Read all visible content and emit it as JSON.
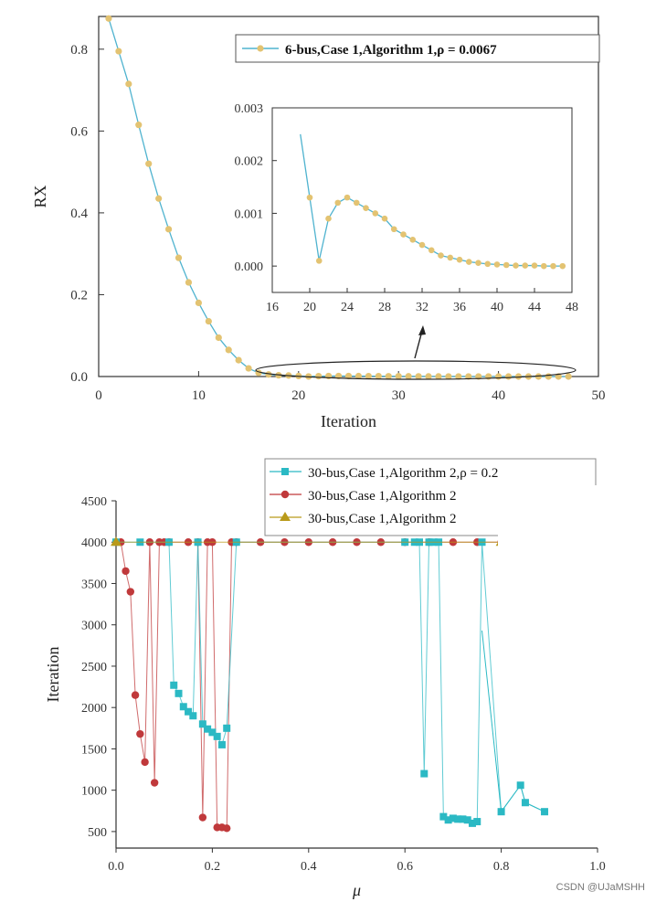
{
  "watermark": "CSDN @UJaMSHH",
  "chart_data": [
    {
      "type": "line",
      "xlabel": "Iteration",
      "ylabel": "RX",
      "xlim": [
        0,
        50
      ],
      "ylim": [
        0,
        0.88
      ],
      "xticks": [
        "0",
        "10",
        "20",
        "30",
        "40",
        "50"
      ],
      "yticks": [
        "0.0",
        "0.2",
        "0.4",
        "0.6",
        "0.8"
      ],
      "legend": "top-right",
      "colors": {
        "line": "#4fb3cf",
        "marker": "#e3c372"
      },
      "series": [
        {
          "name": "6-bus,Case 1,Algorithm 1,ρ = 0.0067",
          "x": [
            1,
            2,
            3,
            4,
            5,
            6,
            7,
            8,
            9,
            10,
            11,
            12,
            13,
            14,
            15,
            16,
            17,
            18,
            19,
            20,
            21,
            22,
            23,
            24,
            25,
            26,
            27,
            28,
            29,
            30,
            31,
            32,
            33,
            34,
            35,
            36,
            37,
            38,
            39,
            40,
            41,
            42,
            43,
            44,
            45,
            46,
            47
          ],
          "y": [
            0.875,
            0.795,
            0.715,
            0.615,
            0.52,
            0.435,
            0.36,
            0.29,
            0.23,
            0.18,
            0.135,
            0.095,
            0.065,
            0.04,
            0.02,
            0.009,
            0.005,
            0.003,
            0.0025,
            0.0013,
            0.0001,
            0.0009,
            0.0012,
            0.0013,
            0.0012,
            0.0011,
            0.001,
            0.0009,
            0.0007,
            0.0006,
            0.0005,
            0.0004,
            0.0003,
            0.0002,
            0.00016,
            0.00012,
            8e-05,
            6e-05,
            4e-05,
            3e-05,
            2e-05,
            1e-05,
            1e-05,
            1e-05,
            0.0,
            0.0,
            0.0
          ]
        }
      ],
      "inset": {
        "xlim": [
          16,
          48
        ],
        "ylim": [
          -0.0005,
          0.003
        ],
        "xticks": [
          "16",
          "20",
          "24",
          "28",
          "32",
          "36",
          "40",
          "44",
          "48"
        ],
        "yticks": [
          "0.000",
          "0.001",
          "0.002",
          "0.003"
        ]
      }
    },
    {
      "type": "line",
      "xlabel": "μ",
      "ylabel": "Iteration",
      "xlim": [
        0,
        1.0
      ],
      "ylim": [
        300,
        4500
      ],
      "xticks": [
        "0.0",
        "0.2",
        "0.4",
        "0.6",
        "0.8",
        "1.0"
      ],
      "yticks": [
        "4500",
        "4000",
        "3500",
        "3000",
        "2500",
        "2000",
        "1500",
        "1000",
        "500"
      ],
      "legend": "top-right",
      "series": [
        {
          "name": "30-bus,Case 1,Algorithm 2,ρ = 0.2",
          "color": "#2bb9c4",
          "marker": "square",
          "x": [
            0.0,
            0.05,
            0.11,
            0.12,
            0.13,
            0.14,
            0.15,
            0.16,
            0.17,
            0.18,
            0.19,
            0.2,
            0.21,
            0.22,
            0.23,
            0.25,
            0.6,
            0.62,
            0.63,
            0.64,
            0.65,
            0.66,
            0.67,
            0.68,
            0.69,
            0.7,
            0.71,
            0.72,
            0.73,
            0.74,
            0.75,
            0.76,
            0.8,
            0.84,
            0.85,
            0.89
          ],
          "y": [
            4000,
            4000,
            4000,
            2270,
            2170,
            2010,
            1950,
            1900,
            4000,
            1800,
            1740,
            1700,
            1650,
            1550,
            1750,
            4000,
            4000,
            4000,
            4000,
            1200,
            4000,
            4000,
            4000,
            680,
            640,
            660,
            650,
            650,
            640,
            600,
            620,
            4000,
            740,
            1060,
            850,
            740
          ]
        },
        {
          "name": "30-bus,Case 1,Algorithm 2",
          "color": "#c0393b",
          "marker": "circle",
          "x": [
            0.0,
            0.01,
            0.02,
            0.03,
            0.04,
            0.05,
            0.06,
            0.07,
            0.08,
            0.09,
            0.1,
            0.11,
            0.15,
            0.17,
            0.18,
            0.19,
            0.2,
            0.21,
            0.22,
            0.23,
            0.24,
            0.25,
            0.3,
            0.35,
            0.4,
            0.45,
            0.5,
            0.55,
            0.6,
            0.65,
            0.7,
            0.75,
            0.8
          ],
          "y": [
            4000,
            4000,
            3650,
            3400,
            2150,
            1680,
            1340,
            4000,
            1090,
            4000,
            4000,
            4000,
            4000,
            4000,
            670,
            4000,
            4000,
            550,
            550,
            540,
            4000,
            4000,
            4000,
            4000,
            4000,
            4000,
            4000,
            4000,
            4000,
            4000,
            4000,
            4000,
            4000
          ]
        },
        {
          "name": "30-bus,Case 1,Algorithm 2",
          "color": "#b99a1a",
          "marker": "triangle",
          "x": [
            0.0,
            0.8
          ],
          "y": [
            4000,
            4000
          ]
        }
      ]
    }
  ]
}
